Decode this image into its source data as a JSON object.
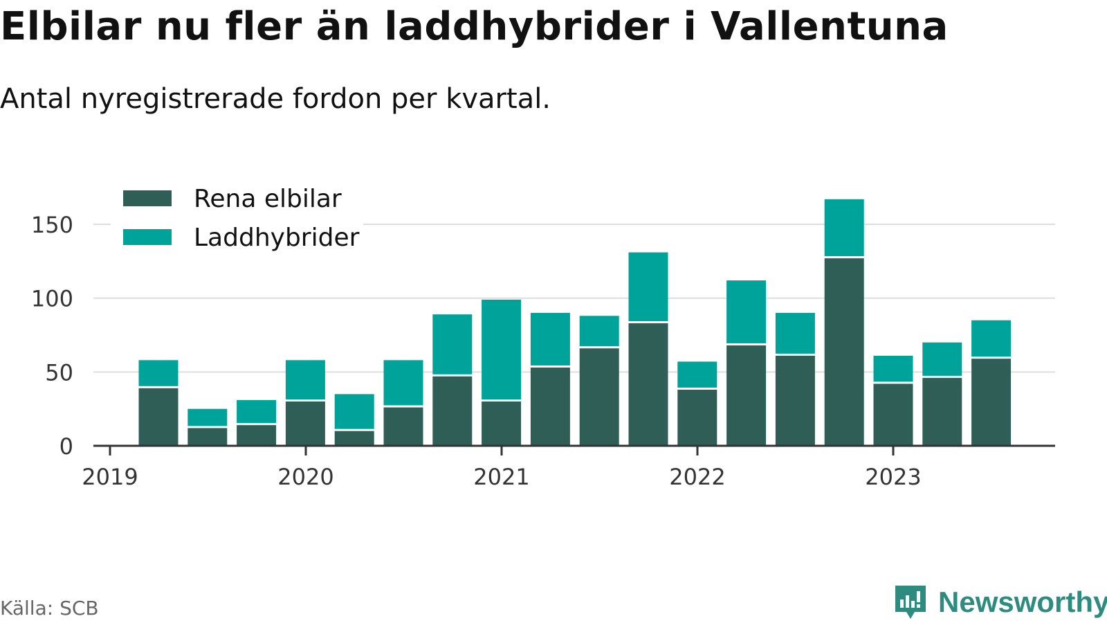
{
  "header": {
    "title": "Elbilar nu fler än laddhybrider i Vallentuna",
    "subtitle": "Antal nyregistrerade fordon per kvartal."
  },
  "footer": {
    "source": "Källa: SCB",
    "brand": "Newsworthy"
  },
  "colors": {
    "rena_elbilar": "#2f5e56",
    "laddhybrider": "#00a39a",
    "grid": "#dddddd",
    "axis": "#333333",
    "brand": "#2e8b80"
  },
  "chart_data": {
    "type": "bar",
    "stacked": true,
    "categories": [
      "2019 Q2",
      "2019 Q3",
      "2019 Q4",
      "2020 Q1",
      "2020 Q2",
      "2020 Q3",
      "2020 Q4",
      "2021 Q1",
      "2021 Q2",
      "2021 Q3",
      "2021 Q4",
      "2022 Q1",
      "2022 Q2",
      "2022 Q3",
      "2022 Q4",
      "2023 Q1",
      "2023 Q2",
      "2023 Q3"
    ],
    "series": [
      {
        "name": "Rena elbilar",
        "color": "#2f5e56",
        "values": [
          39,
          12,
          14,
          30,
          10,
          26,
          47,
          30,
          53,
          66,
          83,
          38,
          68,
          61,
          127,
          42,
          46,
          59
        ]
      },
      {
        "name": "Laddhybrider",
        "color": "#00a39a",
        "values": [
          19,
          13,
          17,
          28,
          25,
          32,
          42,
          69,
          37,
          22,
          48,
          19,
          44,
          29,
          40,
          19,
          24,
          26
        ]
      }
    ],
    "xaxis": {
      "tick_labels": [
        "2019",
        "2020",
        "2021",
        "2022",
        "2023"
      ]
    },
    "yaxis": {
      "ticks": [
        0,
        50,
        100,
        150
      ],
      "ylim": [
        0,
        170
      ]
    },
    "grid": true,
    "legend_position": "top-left"
  }
}
